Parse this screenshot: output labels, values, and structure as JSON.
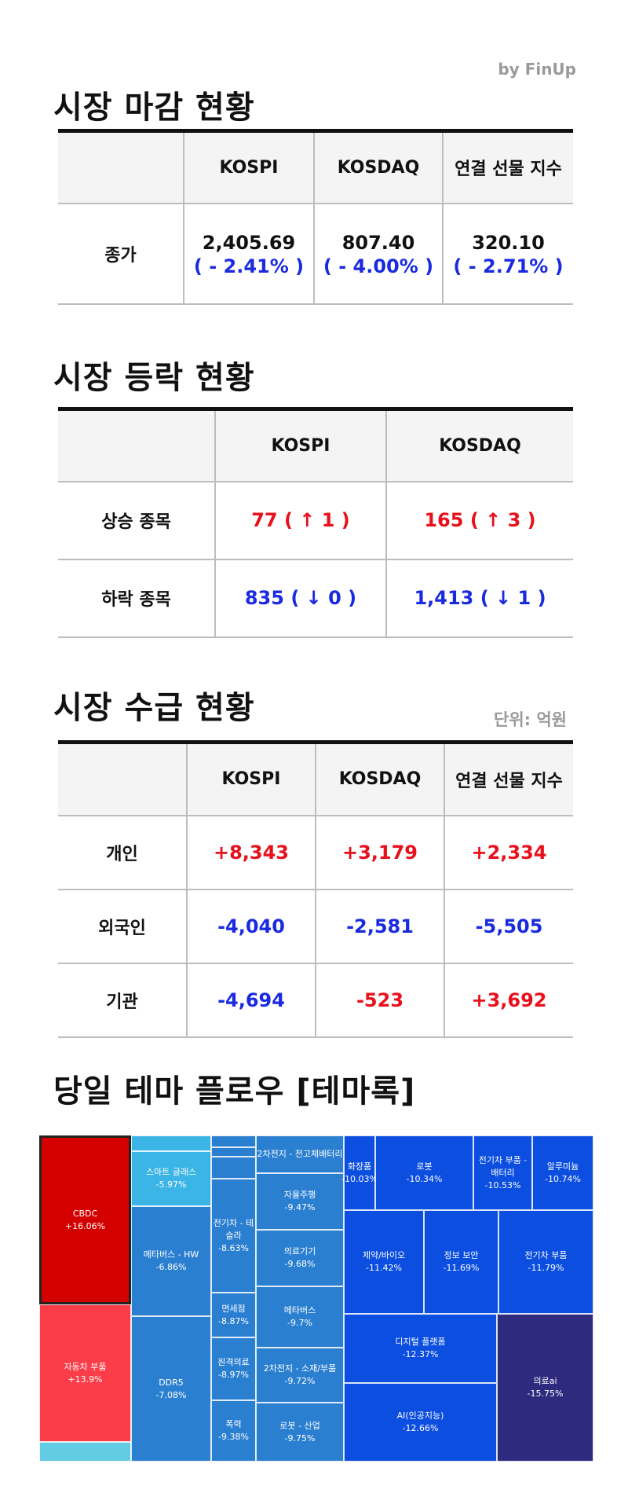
{
  "brand": "by FinUp",
  "close": {
    "title": "시장 마감 현황",
    "headers": [
      "",
      "KOSPI",
      "KOSDAQ",
      "연결 선물 지수"
    ],
    "row_label": "종가",
    "cells": [
      {
        "value": "2,405.69",
        "change": "( - 2.41% )"
      },
      {
        "value": "807.40",
        "change": "( - 4.00% )"
      },
      {
        "value": "320.10",
        "change": "( - 2.71% )"
      }
    ]
  },
  "breadth": {
    "title": "시장 등락 현황",
    "headers": [
      "",
      "KOSPI",
      "KOSDAQ"
    ],
    "rows": [
      {
        "label": "상승 종목",
        "values": [
          "77 ( ↑ 1 )",
          "165 ( ↑ 3 )"
        ]
      },
      {
        "label": "하락 종목",
        "values": [
          "835 ( ↓ 0 )",
          "1,413 ( ↓ 1 )"
        ]
      }
    ]
  },
  "flow": {
    "title": "시장 수급 현황",
    "unit": "단위: 억원",
    "headers": [
      "",
      "KOSPI",
      "KOSDAQ",
      "연결 선물 지수"
    ],
    "rows": [
      {
        "label": "개인",
        "values": [
          "+8,343",
          "+3,179",
          "+2,334"
        ]
      },
      {
        "label": "외국인",
        "values": [
          "-4,040",
          "-2,581",
          "-5,505"
        ]
      },
      {
        "label": "기관",
        "values": [
          "-4,694",
          "-523",
          "+3,692"
        ]
      }
    ]
  },
  "theme": {
    "title": "당일 테마 플로우 [테마록]",
    "colors": {
      "up_strong": "#d40000",
      "up": "#fb3d4a",
      "up_light": "#63cbe4",
      "down_light": "#3bb4e6",
      "down_mid": "#2b7fd1",
      "down": "#0b4ee0",
      "down_deep": "#2e2a7e"
    },
    "tiles": {
      "cbdc": {
        "name": "CBDC",
        "pct": "+16.06%"
      },
      "auto_parts": {
        "name": "자동차 부품",
        "pct": "+13.9%"
      },
      "smart_glass": {
        "name": "스마트 글래스",
        "pct": "-5.97%"
      },
      "metaverse_hw": {
        "name": "메타버스 - HW",
        "pct": "-6.86%"
      },
      "ddr5": {
        "name": "DDR5",
        "pct": "-7.08%"
      },
      "ev_tesla": {
        "name": "전기차 - 테슬라",
        "pct": "-8.63%"
      },
      "duty_free": {
        "name": "면세점",
        "pct": "-8.87%"
      },
      "telemed": {
        "name": "원격의료",
        "pct": "-8.97%"
      },
      "heat": {
        "name": "폭력",
        "pct": "-9.38%"
      },
      "battery_solid": {
        "name": "2차전지 - 전고체배터리",
        "pct": ""
      },
      "autonomous": {
        "name": "자율주행",
        "pct": "-9.47%"
      },
      "medical_device": {
        "name": "의료기기",
        "pct": "-9.68%"
      },
      "metaverse": {
        "name": "메타버스",
        "pct": "-9.7%"
      },
      "battery_material": {
        "name": "2차전지 - 소재/부품",
        "pct": "-9.72%"
      },
      "robot_industry": {
        "name": "로봇 - 산업",
        "pct": "-9.75%"
      },
      "cosmetics": {
        "name": "화장품",
        "pct": "-10.03%"
      },
      "robot": {
        "name": "로봇",
        "pct": "-10.34%"
      },
      "ev_battery": {
        "name": "전기차 부품 - 배터리",
        "pct": "-10.53%"
      },
      "aluminum": {
        "name": "알루미늄",
        "pct": "-10.74%"
      },
      "pharma_bio": {
        "name": "제약/바이오",
        "pct": "-11.42%"
      },
      "security": {
        "name": "정보 보안",
        "pct": "-11.69%"
      },
      "ev_parts": {
        "name": "전기차 부품",
        "pct": "-11.79%"
      },
      "digital_platform": {
        "name": "디지털 플랫폼",
        "pct": "-12.37%"
      },
      "ai": {
        "name": "AI(인공지능)",
        "pct": "-12.66%"
      },
      "medical_ai": {
        "name": "의료ai",
        "pct": "-15.75%"
      }
    }
  }
}
